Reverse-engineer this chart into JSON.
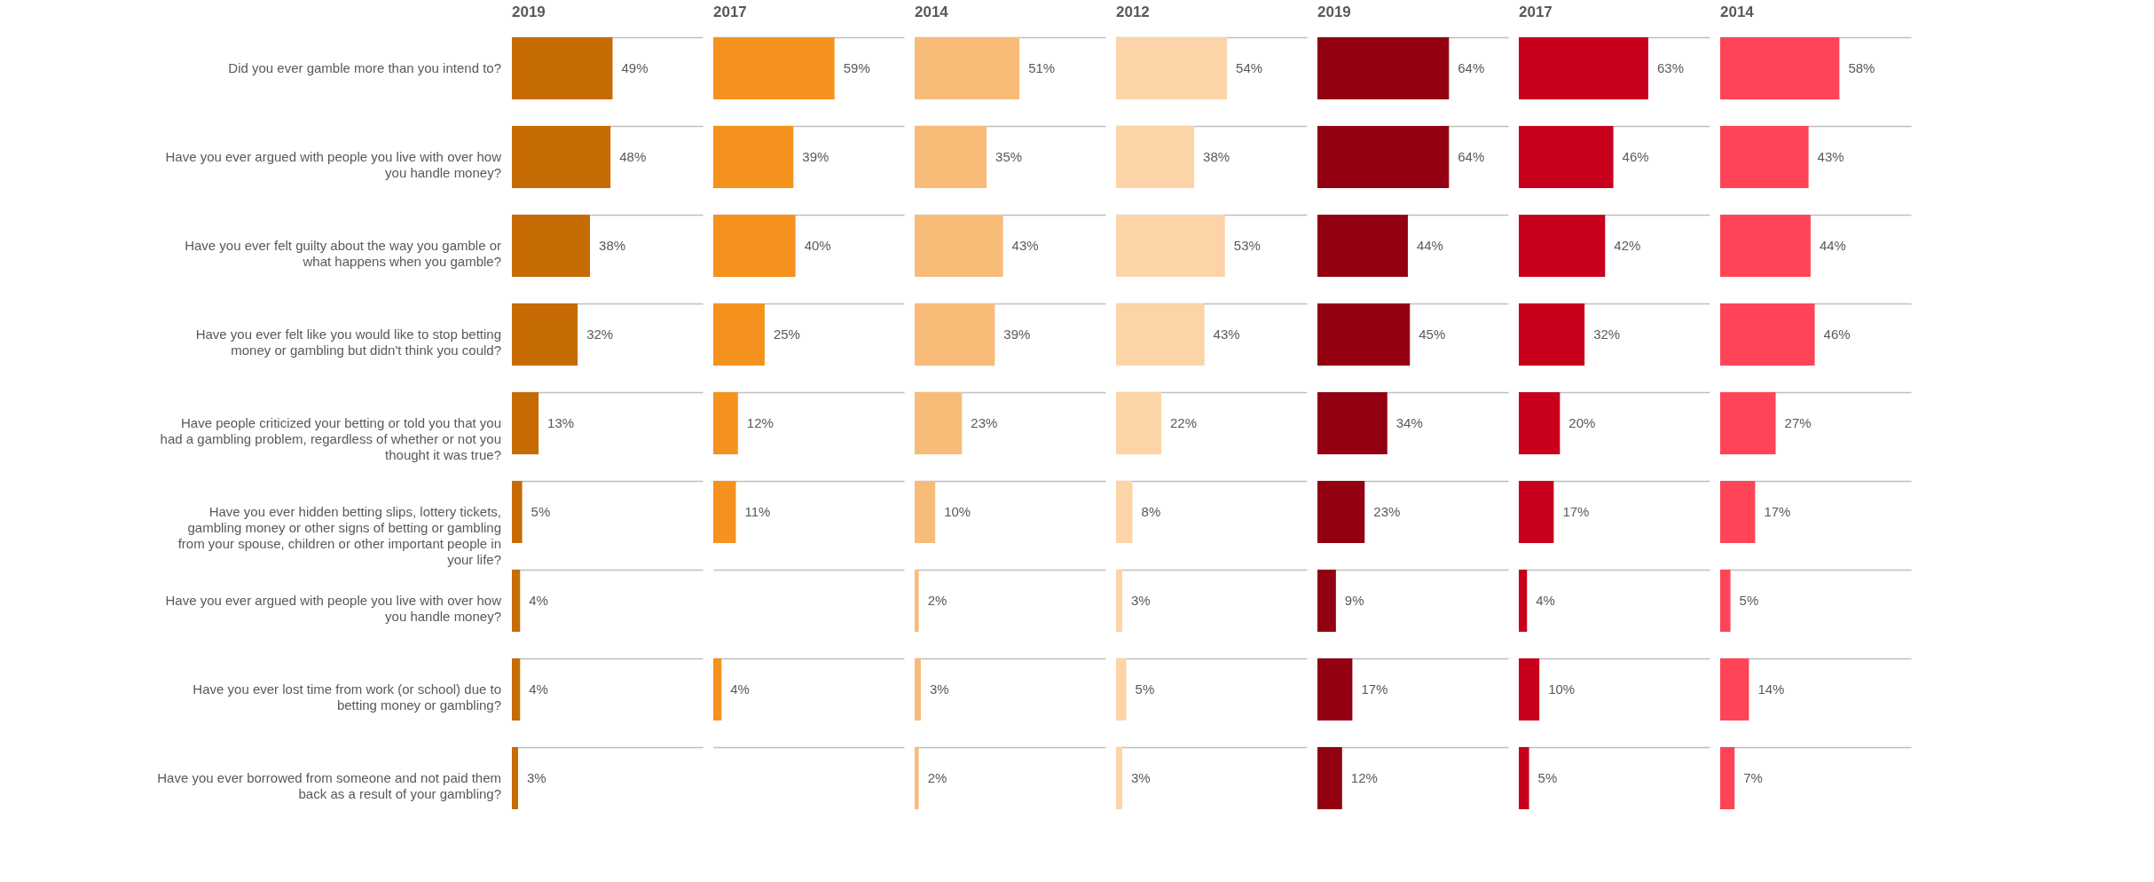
{
  "chart_data": [
    {
      "type": "bar",
      "orientation": "horizontal",
      "title": "2019",
      "grid": "y",
      "tick_labels": "y",
      "color": "#c76b05",
      "categories": [
        "Did you ever gamble more than you intend to?",
        "Have you ever argued with people you live with over how you handle money?",
        "Have you ever felt guilty about the way you gamble or what happens when you gamble?",
        "Have you ever felt like you would like to stop betting money or gambling but didn't think you could?",
        "Have people criticized your betting or told you that you had a gambling problem, regardless of whether or not you thought it was true?",
        "Have you ever hidden betting slips, lottery tickets, gambling money or other signs of betting or gambling from your spouse, children or other important people in your life?",
        "Have you ever argued with people you live with over how you handle money?",
        "Have you ever lost time from work (or school) due to betting money or gambling?",
        "Have you ever borrowed from someone and not paid them back as a result of your gambling?"
      ],
      "values": [
        49,
        48,
        38,
        32,
        13,
        5,
        4,
        4,
        3
      ],
      "value_labels": [
        "49%",
        "48%",
        "38%",
        "32%",
        "13%",
        "5%",
        "4%",
        "4%",
        "3%"
      ]
    },
    {
      "type": "bar",
      "orientation": "horizontal",
      "title": "2017",
      "grid": "y",
      "tick_labels": false,
      "color": "#f5921e",
      "values": [
        59,
        39,
        40,
        25,
        12,
        11,
        null,
        4,
        null
      ],
      "value_labels": [
        "59%",
        "39%",
        "40%",
        "25%",
        "12%",
        "11%",
        null,
        "4%",
        null
      ]
    },
    {
      "type": "bar",
      "orientation": "horizontal",
      "title": "2014",
      "grid": "y",
      "tick_labels": false,
      "color": "#f8bc78",
      "values": [
        51,
        35,
        43,
        39,
        23,
        10,
        2,
        3,
        2
      ],
      "value_labels": [
        "51%",
        "35%",
        "43%",
        "39%",
        "23%",
        "10%",
        "2%",
        "3%",
        "2%"
      ]
    },
    {
      "type": "bar",
      "orientation": "horizontal",
      "title": "2012",
      "grid": "y",
      "tick_labels": false,
      "color": "#fcd4a8",
      "values": [
        54,
        38,
        53,
        43,
        22,
        8,
        3,
        5,
        3
      ],
      "value_labels": [
        "54%",
        "38%",
        "53%",
        "43%",
        "22%",
        "8%",
        "3%",
        "5%",
        "3%"
      ]
    },
    {
      "type": "bar",
      "orientation": "horizontal",
      "title": "2019",
      "grid": "y",
      "tick_labels": false,
      "color": "#930012",
      "values": [
        64,
        64,
        44,
        45,
        34,
        23,
        9,
        17,
        12
      ],
      "value_labels": [
        "64%",
        "64%",
        "44%",
        "45%",
        "34%",
        "23%",
        "9%",
        "17%",
        "12%"
      ]
    },
    {
      "type": "bar",
      "orientation": "horizontal",
      "title": "2017",
      "grid": "y",
      "tick_labels": false,
      "color": "#c8001c",
      "values": [
        63,
        46,
        42,
        32,
        20,
        17,
        4,
        10,
        5
      ],
      "value_labels": [
        "63%",
        "46%",
        "42%",
        "32%",
        "20%",
        "17%",
        "4%",
        "10%",
        "5%"
      ]
    },
    {
      "type": "bar",
      "orientation": "horizontal",
      "title": "2014",
      "grid": "y",
      "tick_labels": false,
      "color": "#ff4458",
      "values": [
        58,
        43,
        44,
        46,
        27,
        17,
        5,
        14,
        7
      ],
      "value_labels": [
        "58%",
        "43%",
        "44%",
        "46%",
        "27%",
        "17%",
        "5%",
        "14%",
        "7%"
      ]
    }
  ]
}
